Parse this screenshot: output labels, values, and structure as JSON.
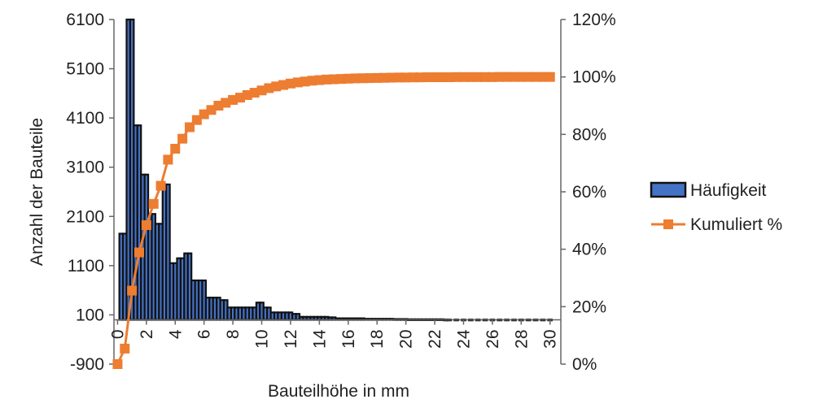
{
  "chart_data": {
    "type": "bar",
    "xlabel": "Bauteilhöhe in mm",
    "ylabel": "Anzahl der Bauteile",
    "y2label": "",
    "ylim": [
      -900,
      6100
    ],
    "y2lim": [
      0,
      1.2
    ],
    "yticks": [
      -900,
      100,
      1100,
      2100,
      3100,
      4100,
      5100,
      6100
    ],
    "yticklabels": [
      "-900",
      "100",
      "1100",
      "2100",
      "3100",
      "4100",
      "5100",
      "6100"
    ],
    "y2ticks": [
      0,
      0.2,
      0.4,
      0.6,
      0.8,
      1.0,
      1.2
    ],
    "y2ticklabels": [
      "0%",
      "20%",
      "40%",
      "60%",
      "80%",
      "100%",
      "120%"
    ],
    "xlim": [
      -0.25,
      30.75
    ],
    "xticks": [
      0,
      2,
      4,
      6,
      8,
      10,
      12,
      14,
      16,
      18,
      20,
      22,
      24,
      26,
      28,
      30
    ],
    "xticklabels": [
      "0",
      "2",
      "4",
      "6",
      "8",
      "10",
      "12",
      "14",
      "16",
      "18",
      "20",
      "22",
      "24",
      "26",
      "28",
      "30"
    ],
    "bar_baseline": 0,
    "legend_position": "right",
    "grid": false,
    "series": [
      {
        "name": "Häufigkeit",
        "type": "bar",
        "color": "#4472c4",
        "edge_color": "#111111",
        "x": [
          0.25,
          0.5,
          0.75,
          1,
          1.25,
          1.5,
          1.75,
          2,
          2.25,
          2.5,
          2.75,
          3,
          3.25,
          3.5,
          3.75,
          4,
          4.25,
          4.5,
          4.75,
          5,
          5.25,
          5.5,
          5.75,
          6,
          6.25,
          6.5,
          6.75,
          7,
          7.25,
          7.5,
          7.75,
          8,
          8.25,
          8.5,
          8.75,
          9,
          9.25,
          9.5,
          9.75,
          10,
          10.25,
          10.5,
          10.75,
          11,
          11.25,
          11.5,
          11.75,
          12,
          12.25,
          12.5,
          12.75,
          13,
          13.25,
          13.5,
          13.75,
          14,
          14.25,
          14.5,
          14.75,
          15,
          15.25,
          15.5,
          15.75,
          16,
          16.25,
          16.5,
          16.75,
          17,
          17.25,
          17.5,
          17.75,
          18,
          18.25,
          18.5,
          18.75,
          19,
          19.25,
          19.5,
          19.75,
          20,
          20.25,
          20.5,
          20.75,
          21,
          21.25,
          21.5,
          21.75,
          22,
          22.25,
          22.5,
          22.75,
          23,
          23.5,
          24,
          24.5,
          25,
          25.5,
          26,
          26.5,
          27,
          27.5,
          28,
          28.5,
          29,
          29.5,
          30
        ],
        "values": [
          1750,
          1750,
          6100,
          6100,
          3950,
          3950,
          2950,
          2950,
          2150,
          2150,
          1950,
          1950,
          2750,
          2750,
          1150,
          1150,
          1250,
          1250,
          1350,
          1350,
          800,
          800,
          800,
          800,
          450,
          450,
          450,
          450,
          400,
          400,
          250,
          250,
          250,
          250,
          250,
          250,
          250,
          250,
          350,
          350,
          250,
          250,
          150,
          150,
          150,
          150,
          150,
          150,
          120,
          120,
          60,
          60,
          60,
          60,
          60,
          60,
          60,
          60,
          50,
          50,
          30,
          30,
          30,
          30,
          30,
          30,
          30,
          30,
          20,
          20,
          20,
          20,
          20,
          20,
          20,
          20,
          15,
          15,
          15,
          15,
          10,
          10,
          10,
          10,
          10,
          10,
          10,
          10,
          10,
          10,
          5,
          5,
          5,
          5,
          5,
          5,
          5,
          5,
          5,
          5,
          5,
          5,
          5,
          5,
          5,
          5
        ]
      },
      {
        "name": "Kumuliert %",
        "type": "line",
        "axis": "secondary",
        "color": "#ed7d31",
        "marker": "square",
        "x": [
          0,
          0.5,
          1,
          1.5,
          2,
          2.5,
          3,
          3.5,
          4,
          4.5,
          5,
          5.5,
          6,
          6.5,
          7,
          7.5,
          8,
          8.5,
          9,
          9.5,
          10,
          10.5,
          11,
          11.5,
          12,
          12.5,
          13,
          13.5,
          14,
          14.5,
          15,
          15.5,
          16,
          16.5,
          17,
          17.5,
          18,
          18.5,
          19,
          19.5,
          20,
          20.5,
          21,
          21.5,
          22,
          22.5,
          23,
          23.5,
          24,
          24.5,
          25,
          25.5,
          26,
          26.5,
          27,
          27.5,
          28,
          28.5,
          29,
          29.5,
          30
        ],
        "values": [
          0.0,
          0.054,
          0.256,
          0.389,
          0.484,
          0.558,
          0.621,
          0.712,
          0.75,
          0.785,
          0.825,
          0.85,
          0.87,
          0.885,
          0.9,
          0.91,
          0.92,
          0.928,
          0.937,
          0.945,
          0.953,
          0.961,
          0.967,
          0.972,
          0.977,
          0.981,
          0.984,
          0.987,
          0.989,
          0.991,
          0.992,
          0.993,
          0.994,
          0.995,
          0.9955,
          0.996,
          0.9965,
          0.997,
          0.9975,
          0.998,
          0.998,
          0.9985,
          0.9985,
          0.999,
          0.999,
          0.999,
          0.999,
          0.9995,
          0.9995,
          0.9995,
          0.9995,
          0.9995,
          0.9995,
          1.0,
          1.0,
          1.0,
          1.0,
          1.0,
          1.0,
          1.0,
          1.0
        ]
      }
    ]
  }
}
